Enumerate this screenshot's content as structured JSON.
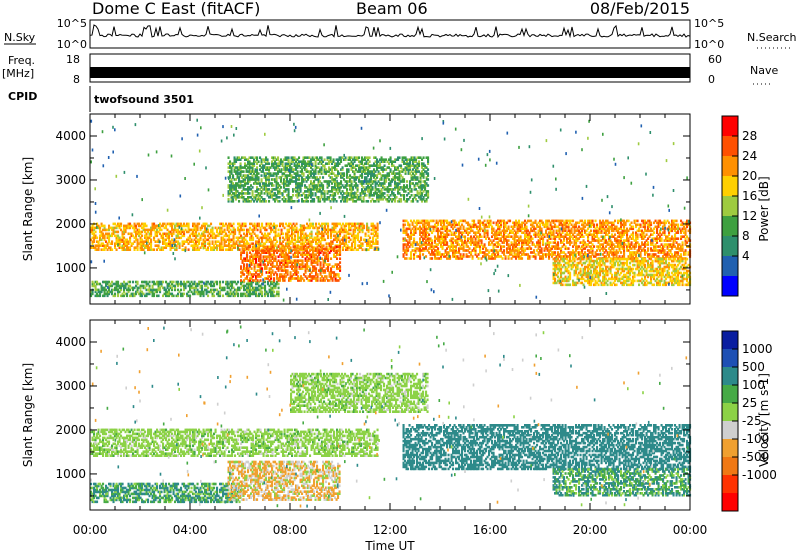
{
  "header": {
    "station": "Dome C East (fitACF)",
    "beam": "Beam 06",
    "date": "08/Feb/2015"
  },
  "top_panels": {
    "nsky_label": "N.Sky",
    "nsky_ticks": [
      "10^5",
      "10^0"
    ],
    "nsearch_label": "N.Search",
    "nsearch_ticks": [
      "10^5",
      "10^0"
    ],
    "freq_label": "Freq.",
    "freq_unit": "[MHz]",
    "freq_ticks": [
      "18",
      "8"
    ],
    "nave_label": "Nave",
    "nave_ticks": [
      "60",
      "0"
    ],
    "cpid_label": "CPID",
    "cpid_value": "twofsound 3501"
  },
  "chart_data": [
    {
      "type": "heatmap",
      "panel": "power",
      "xlabel": "",
      "ylabel": "Slant Range [km]",
      "x_unit": "hours UT",
      "xlim": [
        0,
        24
      ],
      "ylim": [
        180,
        4500
      ],
      "yticks": [
        1000,
        2000,
        3000,
        4000
      ],
      "colorbar": {
        "label": "Power [dB]",
        "ticks": [
          "28",
          "24",
          "20",
          "16",
          "12",
          "8",
          "4"
        ],
        "colors": [
          "#ff0000",
          "#ff5000",
          "#ff9000",
          "#ffd000",
          "#9ecb40",
          "#3ea040",
          "#2e8f6c",
          "#2060b0",
          "#0000ff"
        ]
      },
      "echo_bands": [
        {
          "x": [
            0.0,
            11.5
          ],
          "range": [
            1400,
            2000
          ],
          "approx_power_db": 22
        },
        {
          "x": [
            0.0,
            7.5
          ],
          "range": [
            350,
            700
          ],
          "approx_power_db": 12
        },
        {
          "x": [
            6.0,
            10.0
          ],
          "range": [
            700,
            1500
          ],
          "approx_power_db": 26
        },
        {
          "x": [
            12.5,
            24.0
          ],
          "range": [
            1200,
            2100
          ],
          "approx_power_db": 24
        },
        {
          "x": [
            18.5,
            24.0
          ],
          "range": [
            600,
            1200
          ],
          "approx_power_db": 20
        },
        {
          "x": [
            5.5,
            13.5
          ],
          "range": [
            2500,
            3500
          ],
          "approx_power_db": 12
        }
      ]
    },
    {
      "type": "heatmap",
      "panel": "velocity",
      "xlabel": "Time UT",
      "ylabel": "Slant Range [km]",
      "x_unit": "hours UT",
      "xlim": [
        0,
        24
      ],
      "ylim": [
        180,
        4500
      ],
      "yticks": [
        1000,
        2000,
        3000,
        4000
      ],
      "xticks": [
        "00:00",
        "04:00",
        "08:00",
        "12:00",
        "16:00",
        "20:00",
        "00:00"
      ],
      "colorbar": {
        "label": "Velocity [m s-1]",
        "ticks": [
          "1000",
          "500",
          "100",
          "25",
          "-25",
          "-100",
          "-500",
          "-1000"
        ],
        "colors": [
          "#0a1ea0",
          "#1e50b4",
          "#2d8a8a",
          "#46aa46",
          "#8cd246",
          "#cfcfcf",
          "#f0a030",
          "#f07814",
          "#ff3200",
          "#ff0000"
        ]
      },
      "echo_bands": [
        {
          "x": [
            0.0,
            11.5
          ],
          "range": [
            1400,
            2000
          ],
          "approx_velocity_ms": 0
        },
        {
          "x": [
            0.0,
            6.0
          ],
          "range": [
            350,
            800
          ],
          "approx_velocity_ms": 100
        },
        {
          "x": [
            5.5,
            10.0
          ],
          "range": [
            400,
            1300
          ],
          "approx_velocity_ms": -100
        },
        {
          "x": [
            12.5,
            24.0
          ],
          "range": [
            1100,
            2100
          ],
          "approx_velocity_ms": 300
        },
        {
          "x": [
            8.0,
            13.5
          ],
          "range": [
            2400,
            3300
          ],
          "approx_velocity_ms": 0
        },
        {
          "x": [
            18.5,
            24.0
          ],
          "range": [
            500,
            1100
          ],
          "approx_velocity_ms": 100
        }
      ]
    }
  ]
}
